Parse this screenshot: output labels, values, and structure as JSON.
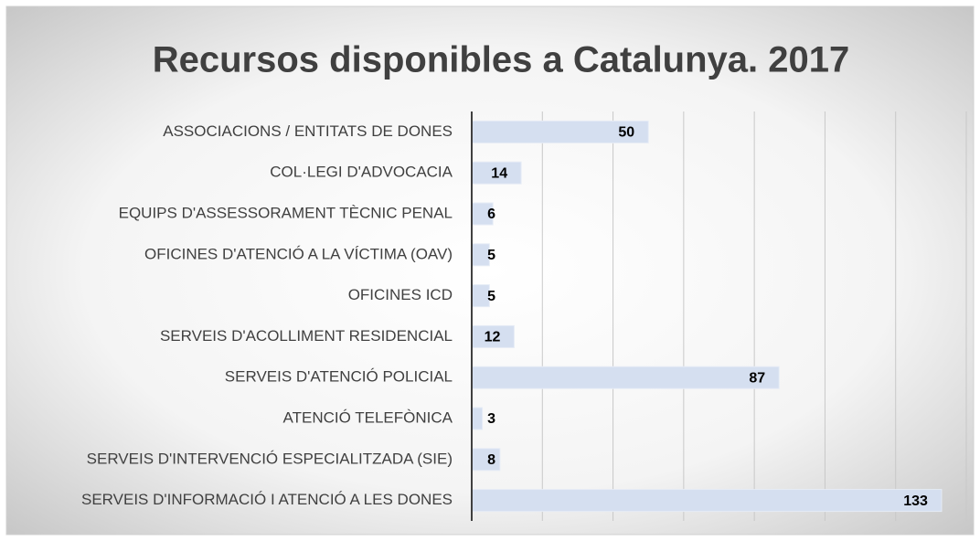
{
  "chart_data": {
    "type": "barh",
    "title": "Recursos disponibles a Catalunya. 2017",
    "categories": [
      "ASSOCIACIONS / ENTITATS DE DONES",
      "COL·LEGI D'ADVOCACIA",
      "EQUIPS D'ASSESSORAMENT TÈCNIC PENAL",
      "OFICINES D'ATENCIÓ A LA VÍCTIMA (OAV)",
      "OFICINES ICD",
      "SERVEIS D'ACOLLIMENT RESIDENCIAL",
      "SERVEIS D'ATENCIÓ POLICIAL",
      "ATENCIÓ TELEFÒNICA",
      "SERVEIS D'INTERVENCIÓ ESPECIALITZADA (SIE)",
      "SERVEIS D'INFORMACIÓ I ATENCIÓ A LES DONES"
    ],
    "values": [
      50,
      14,
      6,
      5,
      5,
      12,
      87,
      3,
      8,
      133
    ],
    "color": "#d5dff0",
    "xlim": [
      0,
      140
    ],
    "xticks": [
      0,
      20,
      40,
      60,
      80,
      100,
      120,
      140
    ],
    "grid": true
  }
}
